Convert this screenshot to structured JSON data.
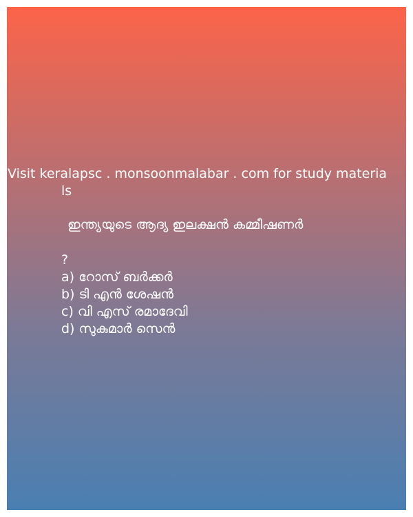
{
  "promo": {
    "line1": "Visit keralapsc . monsoonmalabar . com for study materia",
    "line2": "ls"
  },
  "question": {
    "text": "ഇന്ത്യയുടെ ആദ്യ ഇലക്ഷൻ കമ്മീഷണർ",
    "mark": "?"
  },
  "options": [
    {
      "label": "a) റോസ് ബർക്കർ"
    },
    {
      "label": "b) ടി എൻ ശേഷൻ"
    },
    {
      "label": "c) വി എസ് രമാദേവി"
    },
    {
      "label": "d) സുകുമാർ സെൻ"
    }
  ],
  "colors": {
    "gradient_top": "#fc6449",
    "gradient_bottom": "#4a7fb2",
    "text": "#ffffff"
  }
}
